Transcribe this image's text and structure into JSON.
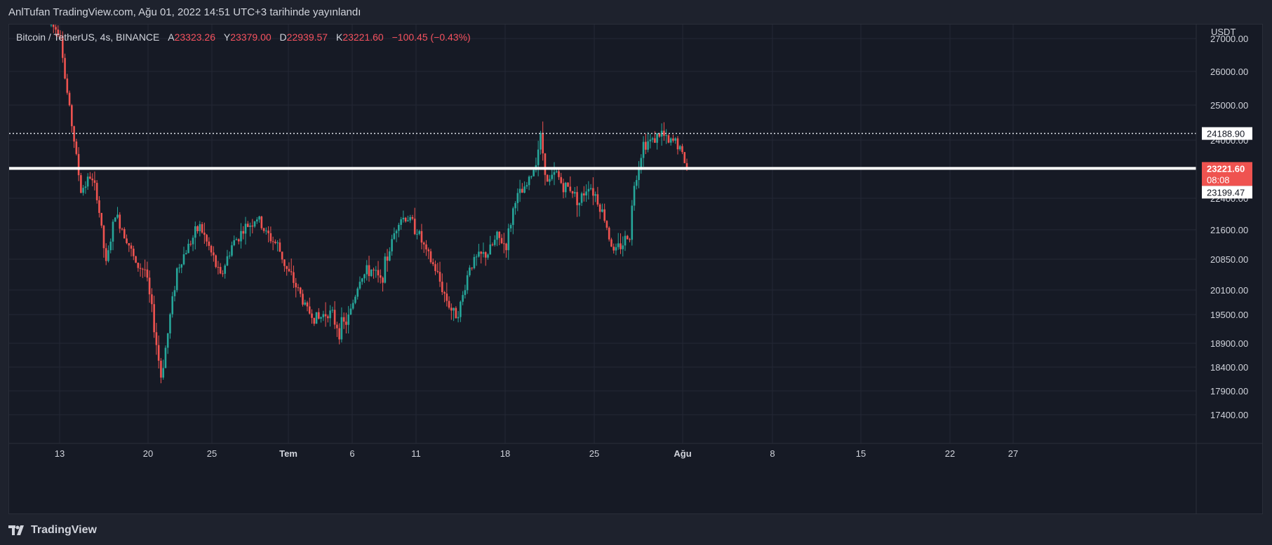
{
  "header": {
    "attribution": "AnlTufan TradingView.com, Ağu 01, 2022 14:51 UTC+3 tarihinde yayınlandı"
  },
  "legend": {
    "symbol": "Bitcoin / TetherUS, 4s, BINANCE",
    "open_label": "A",
    "open": "23323.26",
    "high_label": "Y",
    "high": "23379.00",
    "low_label": "D",
    "low": "22939.57",
    "close_label": "K",
    "close": "23221.60",
    "change": "−100.45 (−0.43%)"
  },
  "footer": {
    "brand": "TradingView",
    "logo_icon": "tradingview-logo-icon"
  },
  "colors": {
    "up": "#26a69a",
    "down": "#ef5350",
    "background": "#161a25",
    "grid": "#242835",
    "text": "#d1d4dc",
    "current_price_badge": "#ef5350"
  },
  "chart_data": {
    "type": "candlestick",
    "symbol": "BTCUSDT",
    "interval": "4s",
    "exchange": "BINANCE",
    "currency": "USDT",
    "y_ticks": [
      27000,
      26000,
      25000,
      24000,
      23221.6,
      22400,
      21600,
      20850,
      20100,
      19500,
      18900,
      18400,
      17900,
      17400
    ],
    "y_tick_labels": [
      "27000.00",
      "26000.00",
      "25000.00",
      "24000.00",
      "23221.60",
      "22400.00",
      "21600.00",
      "20850.00",
      "20100.00",
      "19500.00",
      "18900.00",
      "18400.00",
      "17900.00",
      "17400.00"
    ],
    "x_ticks": [
      "13",
      "20",
      "25",
      "Tem",
      "6",
      "11",
      "18",
      "25",
      "Ağu",
      "8",
      "15",
      "22",
      "27"
    ],
    "x_tick_bold": [
      "Tem",
      "Ağu"
    ],
    "price_lines": [
      {
        "price": 24188.9,
        "label": "24188.90",
        "style": "dotted"
      },
      {
        "price": 23221.6,
        "label": "23221.60",
        "style": "solid-thick",
        "countdown": "08:08"
      },
      {
        "price": 23199.47,
        "label": "23199.47",
        "style": "marker"
      }
    ],
    "key_path": [
      [
        0,
        27400
      ],
      [
        4,
        27200
      ],
      [
        6,
        25800
      ],
      [
        10,
        24000
      ],
      [
        13,
        22600
      ],
      [
        17,
        23000
      ],
      [
        20,
        22500
      ],
      [
        24,
        20700
      ],
      [
        28,
        22000
      ],
      [
        33,
        21400
      ],
      [
        37,
        20700
      ],
      [
        41,
        20600
      ],
      [
        44,
        19600
      ],
      [
        48,
        18200
      ],
      [
        51,
        19100
      ],
      [
        55,
        20600
      ],
      [
        60,
        21200
      ],
      [
        65,
        21700
      ],
      [
        70,
        21000
      ],
      [
        74,
        20400
      ],
      [
        79,
        21200
      ],
      [
        84,
        21600
      ],
      [
        90,
        21900
      ],
      [
        94,
        21500
      ],
      [
        99,
        21200
      ],
      [
        103,
        20600
      ],
      [
        108,
        20100
      ],
      [
        112,
        19600
      ],
      [
        117,
        19400
      ],
      [
        121,
        19600
      ],
      [
        126,
        19200
      ],
      [
        130,
        19400
      ],
      [
        135,
        20400
      ],
      [
        140,
        20600
      ],
      [
        144,
        20300
      ],
      [
        148,
        21100
      ],
      [
        152,
        21900
      ],
      [
        156,
        21900
      ],
      [
        160,
        21600
      ],
      [
        164,
        21000
      ],
      [
        168,
        20600
      ],
      [
        172,
        20000
      ],
      [
        176,
        19500
      ],
      [
        179,
        19700
      ],
      [
        183,
        20700
      ],
      [
        187,
        20900
      ],
      [
        191,
        21000
      ],
      [
        195,
        21400
      ],
      [
        199,
        21200
      ],
      [
        203,
        22400
      ],
      [
        207,
        22600
      ],
      [
        211,
        23200
      ],
      [
        214,
        24100
      ],
      [
        217,
        22800
      ],
      [
        221,
        23100
      ],
      [
        224,
        22700
      ],
      [
        227,
        22700
      ],
      [
        231,
        22300
      ],
      [
        235,
        22800
      ],
      [
        238,
        22500
      ],
      [
        242,
        21900
      ],
      [
        246,
        21000
      ],
      [
        249,
        21200
      ],
      [
        253,
        21500
      ],
      [
        255,
        22800
      ],
      [
        259,
        23900
      ],
      [
        263,
        24000
      ],
      [
        267,
        24200
      ],
      [
        270,
        23900
      ],
      [
        273,
        24000
      ],
      [
        276,
        23600
      ],
      [
        278,
        23222
      ]
    ]
  }
}
